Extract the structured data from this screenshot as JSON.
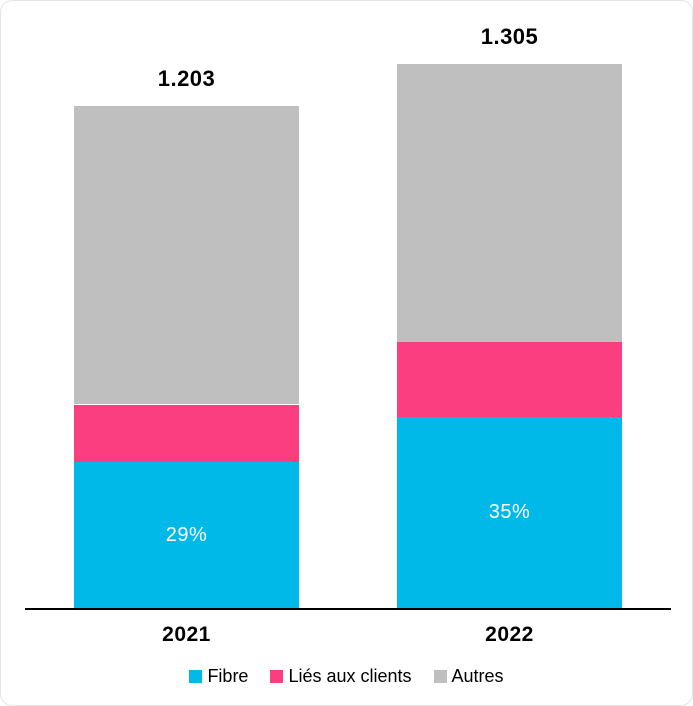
{
  "chart_data": {
    "type": "bar",
    "stacked": true,
    "title": "",
    "categories": [
      "2021",
      "2022"
    ],
    "totals": [
      1203,
      1305
    ],
    "total_labels": [
      "1.203",
      "1.305"
    ],
    "series": [
      {
        "name": "Fibre",
        "color": "#00B9E8",
        "values": [
          349,
          457
        ],
        "labels": [
          "29%",
          "35%"
        ]
      },
      {
        "name": "Liés aux clients",
        "color": "#FB3E80",
        "values": [
          139,
          180
        ]
      },
      {
        "name": "Autres",
        "color": "#BFBFBF",
        "values": [
          715,
          668
        ]
      }
    ],
    "legend_position": "bottom",
    "grid": false,
    "axis_color": "#000000",
    "background_color": "#FFFFFF"
  }
}
